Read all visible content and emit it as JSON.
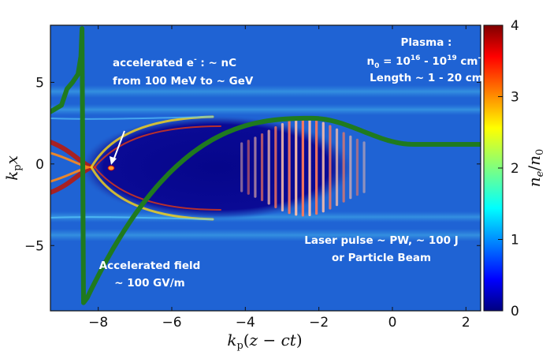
{
  "plot": {
    "xlabel": "k_p(z − ct)",
    "ylabel": "k_p x",
    "xrange": [
      -9.3,
      2.4
    ],
    "yrange": [
      -9.0,
      8.5
    ],
    "xticks": [
      {
        "v": -8,
        "label": "−8"
      },
      {
        "v": -6,
        "label": "−6"
      },
      {
        "v": -4,
        "label": "−4"
      },
      {
        "v": -2,
        "label": "−2"
      },
      {
        "v": 0,
        "label": "0"
      },
      {
        "v": 2,
        "label": "2"
      }
    ],
    "yticks": [
      {
        "v": 5,
        "label": "5"
      },
      {
        "v": 0,
        "label": "0"
      },
      {
        "v": -5,
        "label": "−5"
      }
    ]
  },
  "colorbar": {
    "label": "n_e/n_0",
    "range": [
      0,
      4
    ],
    "ticks": [
      {
        "v": 0,
        "label": "0"
      },
      {
        "v": 1,
        "label": "1"
      },
      {
        "v": 2,
        "label": "2"
      },
      {
        "v": 3,
        "label": "3"
      },
      {
        "v": 4,
        "label": "4"
      }
    ],
    "colormap": "jet"
  },
  "annotations": {
    "electrons": {
      "line1_prefix": "accelerated e",
      "line1_sup": "-",
      "line1_suffix": " : ~ nC",
      "line2": "from 100 MeV to ~ GeV"
    },
    "plasma": {
      "title": "Plasma :",
      "density_prefix": "n",
      "density_sub": "0",
      "density_eq": " = 10",
      "density_exp1": "16",
      "density_mid": " - 10",
      "density_exp2": "19",
      "density_unit": " cm",
      "density_unit_exp": "-3",
      "length": "Length ~ 1 - 20 cm"
    },
    "laser": {
      "line1": "Laser pulse ~ PW, ~ 100 J",
      "line2": "or Particle Beam"
    },
    "field": {
      "line1": "Accelerated field",
      "line2": "~ 100 GV/m"
    }
  },
  "colors": {
    "background": "#1f63d4",
    "cavity": "#0a0a8f",
    "field_line": "#1f7a1f",
    "text": "#ffffff"
  }
}
